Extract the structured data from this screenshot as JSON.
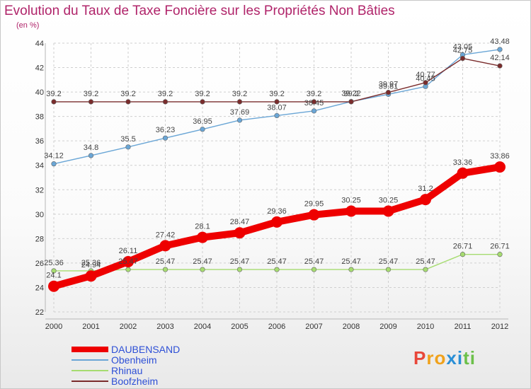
{
  "chart_data": {
    "type": "line",
    "title": "Evolution du Taux de Taxe Foncière sur les Propriétés Non Bâties",
    "subtitle": "(en %)",
    "categories": [
      "2000",
      "2001",
      "2002",
      "2003",
      "2004",
      "2005",
      "2006",
      "2007",
      "2008",
      "2009",
      "2010",
      "2011",
      "2012"
    ],
    "ylim": [
      22,
      44
    ],
    "yticks": [
      "22",
      "24",
      "26",
      "28",
      "30",
      "32",
      "34",
      "36",
      "38",
      "40",
      "42",
      "44"
    ],
    "grid": true,
    "series": [
      {
        "name": "DAUBENSAND",
        "color": "#ee0000",
        "values": [
          24.1,
          24.94,
          26.11,
          27.42,
          28.1,
          28.47,
          29.36,
          29.95,
          30.25,
          30.25,
          31.2,
          33.36,
          33.86
        ],
        "labels": [
          "24.1",
          "24.94",
          "26.11",
          "27.42",
          "28.1",
          "28.47",
          "29.36",
          "29.95",
          "30.25",
          "30.25",
          "31.2",
          "33.36",
          "33.86"
        ]
      },
      {
        "name": "Obenheim",
        "color": "#6aa6d6",
        "values": [
          34.12,
          34.8,
          35.5,
          36.23,
          36.95,
          37.69,
          38.07,
          38.45,
          39.22,
          39.81,
          40.45,
          43.05,
          43.48
        ],
        "labels": [
          "34.12",
          "34.8",
          "35.5",
          "36.23",
          "36.95",
          "37.69",
          "38.07",
          "38.45",
          "39.22",
          "39.81",
          "40.45",
          "43.05",
          "43.48"
        ]
      },
      {
        "name": "Rhinau",
        "color": "#a6dc70",
        "values": [
          25.36,
          25.36,
          25.47,
          25.47,
          25.47,
          25.47,
          25.47,
          25.47,
          25.47,
          25.47,
          25.47,
          26.71,
          26.71
        ],
        "labels": [
          "25.36",
          "25.36",
          "25.47",
          "25.47",
          "25.47",
          "25.47",
          "25.47",
          "25.47",
          "25.47",
          "25.47",
          "25.47",
          "26.71",
          "26.71"
        ]
      },
      {
        "name": "Boofzheim",
        "color": "#7a2c2c",
        "values": [
          39.2,
          39.2,
          39.2,
          39.2,
          39.2,
          39.2,
          39.2,
          39.2,
          39.2,
          39.97,
          40.77,
          42.75,
          42.14
        ],
        "labels": [
          "39.2",
          "39.2",
          "39.2",
          "39.2",
          "39.2",
          "39.2",
          "39.2",
          "39.2",
          "39.2",
          "39.97",
          "40.77",
          "42.75",
          "42.14"
        ]
      }
    ]
  },
  "logo": {
    "letters": [
      "P",
      "r",
      "o",
      "x",
      "i",
      "t",
      "i"
    ],
    "colors": [
      "#e8473a",
      "#f0a21c",
      "#f0a21c",
      "#2a8fd6",
      "#2a8fd6",
      "#6cc04a",
      "#6cc04a"
    ]
  }
}
